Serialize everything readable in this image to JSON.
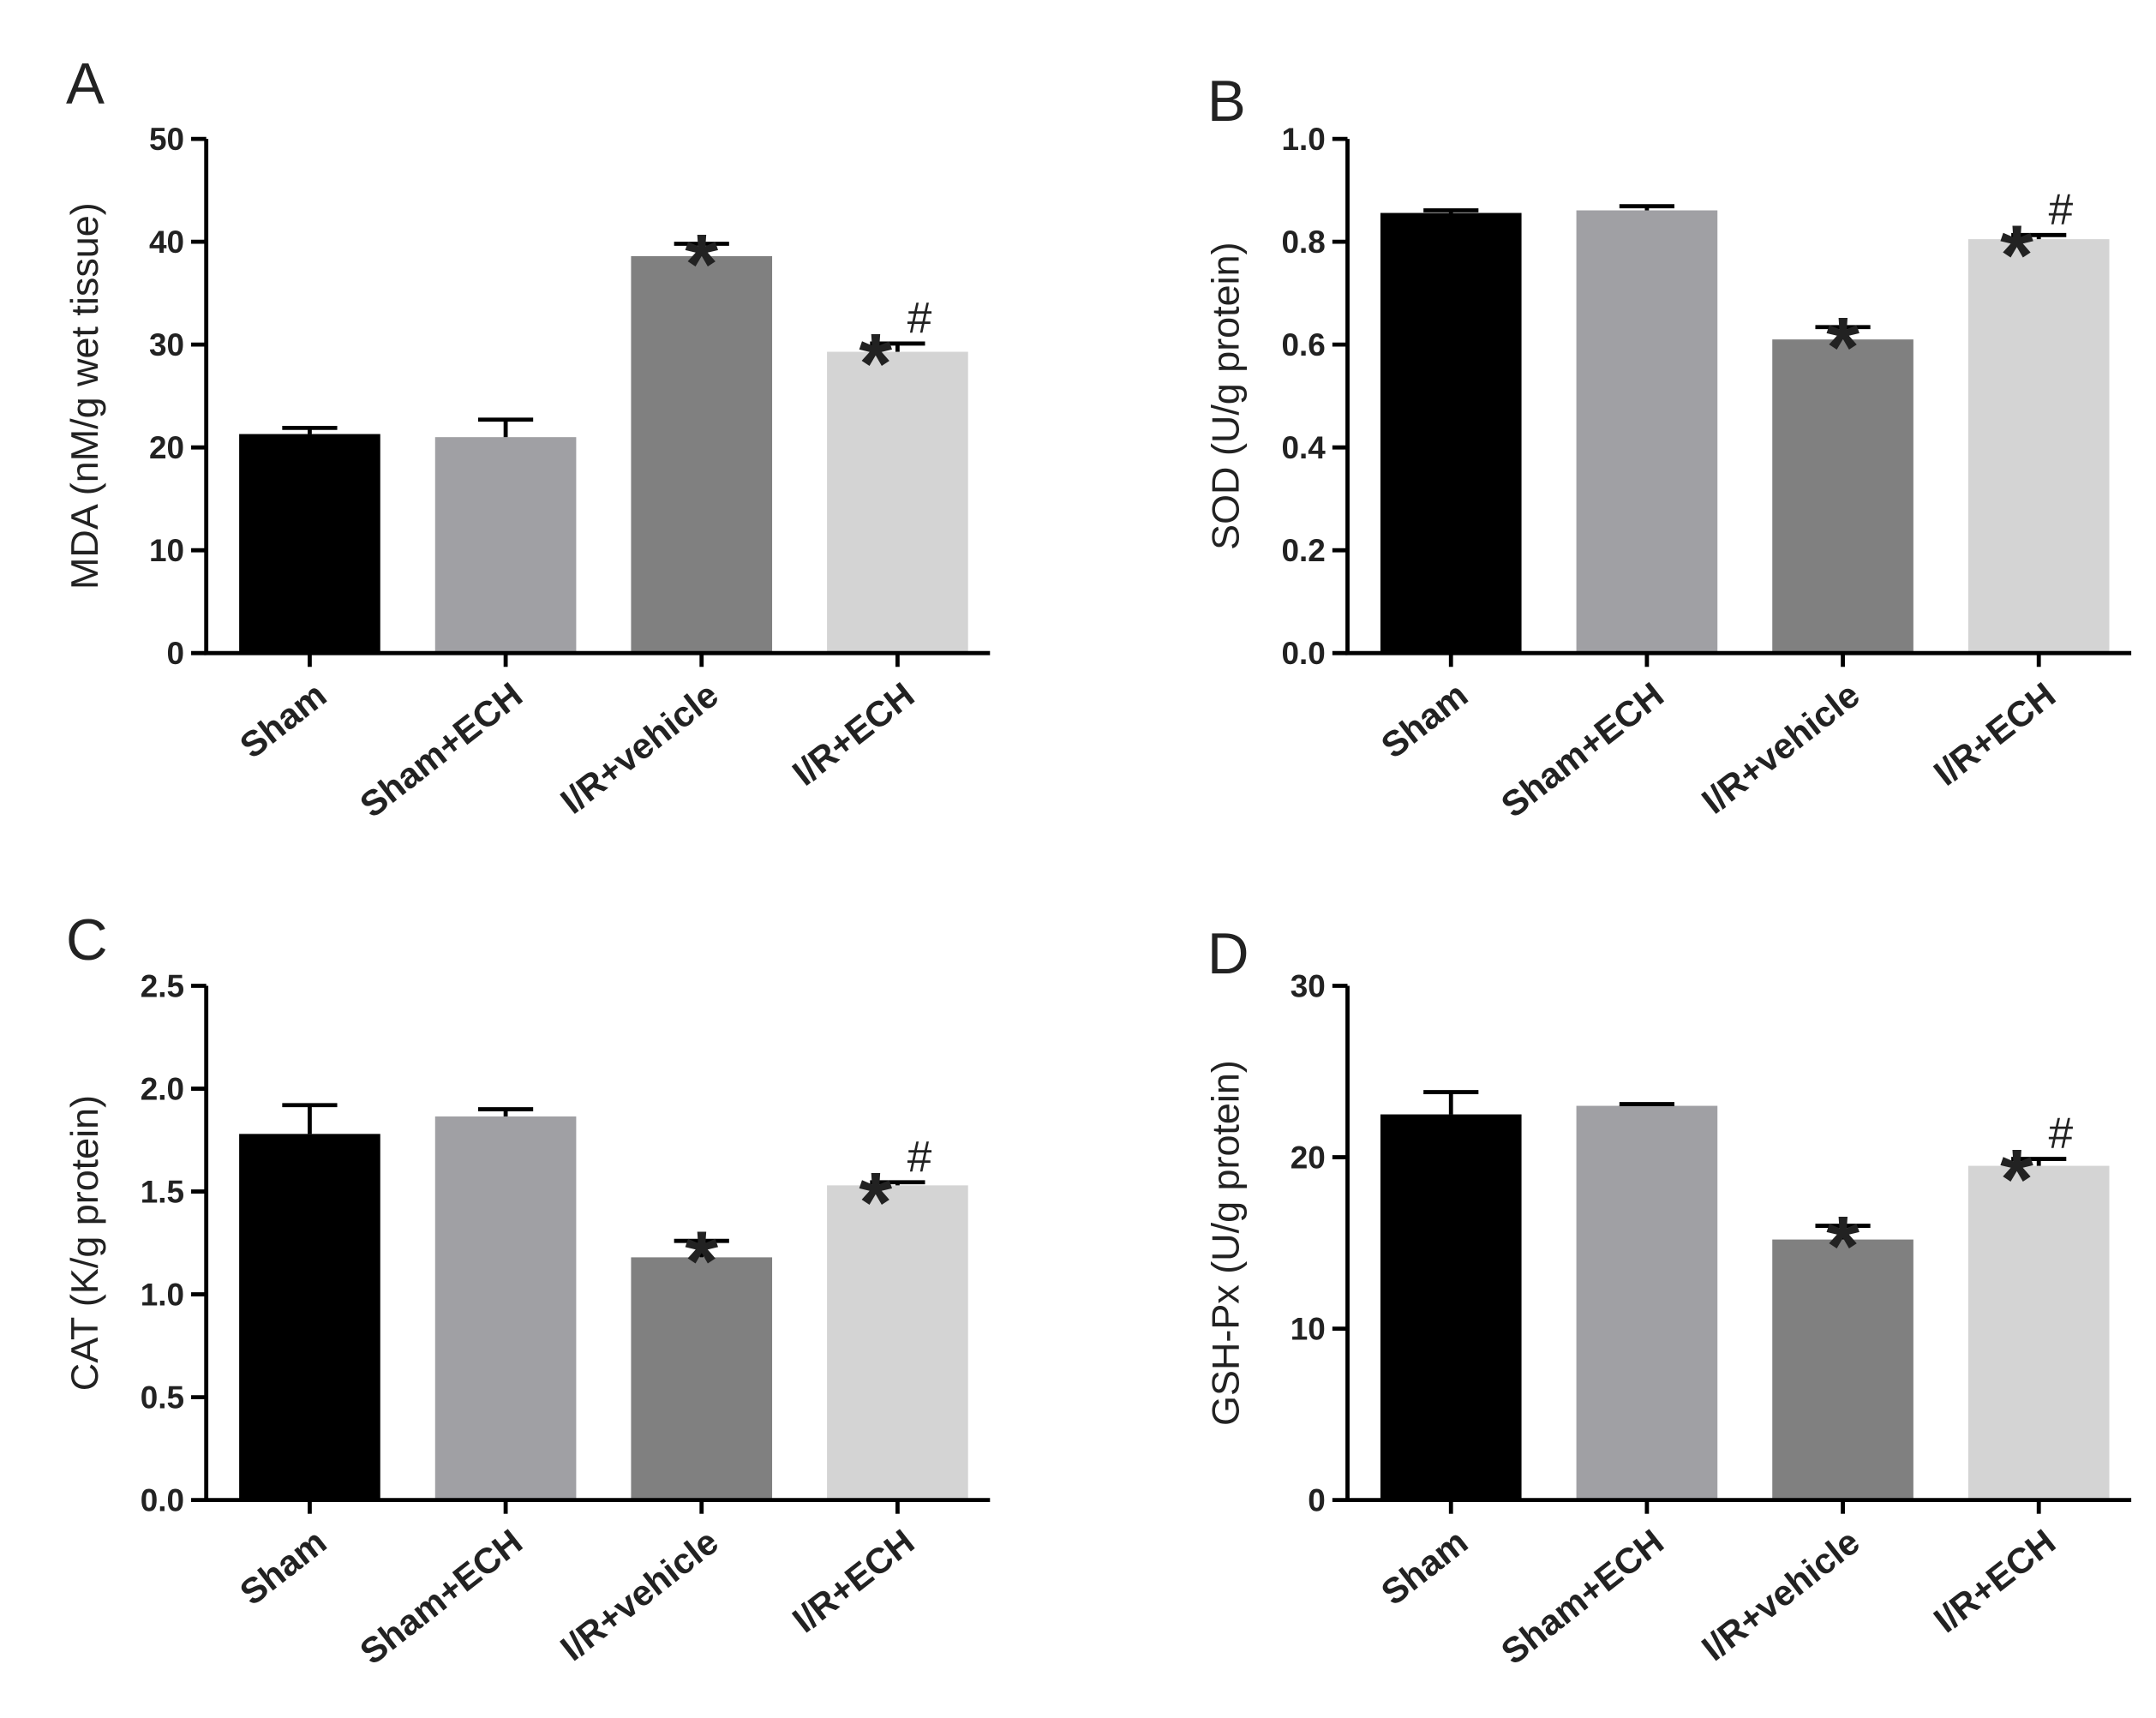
{
  "chart_data": [
    {
      "type": "bar",
      "panel_label": "A",
      "ylabel": "MDA (nM/g wet tissue)",
      "categories": [
        "Sham",
        "Sham+ECH",
        "I/R+vehicle",
        "I/R+ECH"
      ],
      "values": [
        21.3,
        21.0,
        38.6,
        29.3
      ],
      "errors": [
        0.6,
        1.7,
        1.2,
        0.8
      ],
      "colors": [
        "#000000",
        "#a0a0a4",
        "#808080",
        "#d4d4d4"
      ],
      "ylim": [
        0,
        50
      ],
      "yticks": [
        0,
        10,
        20,
        30,
        40,
        50
      ],
      "annotations": [
        {
          "at": "I/R+vehicle",
          "text": "*"
        },
        {
          "at": "I/R+ECH",
          "text": "*"
        },
        {
          "at": "I/R+ECH",
          "text": "#"
        }
      ]
    },
    {
      "type": "bar",
      "panel_label": "B",
      "ylabel": "SOD (U/g protein)",
      "categories": [
        "Sham",
        "Sham+ECH",
        "I/R+vehicle",
        "I/R+ECH"
      ],
      "values": [
        0.856,
        0.861,
        0.61,
        0.805
      ],
      "errors": [
        0.005,
        0.008,
        0.024,
        0.008
      ],
      "colors": [
        "#000000",
        "#a0a0a4",
        "#808080",
        "#d4d4d4"
      ],
      "ylim": [
        0,
        1
      ],
      "yticks": [
        {
          "value": 0,
          "label": "0.0"
        },
        0.2,
        0.4,
        0.6,
        0.8,
        {
          "value": 1,
          "label": "1.0"
        }
      ],
      "annotations": [
        {
          "at": "I/R+vehicle",
          "text": "*"
        },
        {
          "at": "I/R+ECH",
          "text": "*"
        },
        {
          "at": "I/R+ECH",
          "text": "#"
        }
      ]
    },
    {
      "type": "bar",
      "panel_label": "C",
      "ylabel": "CAT (K/g protein)",
      "categories": [
        "Sham",
        "Sham+ECH",
        "I/R+vehicle",
        "I/R+ECH"
      ],
      "values": [
        1.78,
        1.865,
        1.18,
        1.53
      ],
      "errors": [
        0.14,
        0.035,
        0.08,
        0.015
      ],
      "colors": [
        "#000000",
        "#a0a0a4",
        "#808080",
        "#d4d4d4"
      ],
      "ylim": [
        0,
        2.5
      ],
      "yticks": [
        {
          "value": 0,
          "label": "0.0"
        },
        0.5,
        {
          "value": 1,
          "label": "1.0"
        },
        1.5,
        {
          "value": 2,
          "label": "2.0"
        },
        2.5
      ],
      "annotations": [
        {
          "at": "I/R+vehicle",
          "text": "*"
        },
        {
          "at": "I/R+ECH",
          "text": "*"
        },
        {
          "at": "I/R+ECH",
          "text": "#"
        }
      ]
    },
    {
      "type": "bar",
      "panel_label": "D",
      "ylabel": "GSH-Px (U/g protein)",
      "categories": [
        "Sham",
        "Sham+ECH",
        "I/R+vehicle",
        "I/R+ECH"
      ],
      "values": [
        22.5,
        23.0,
        15.2,
        19.5
      ],
      "errors": [
        1.3,
        0.1,
        0.8,
        0.4
      ],
      "colors": [
        "#000000",
        "#a0a0a4",
        "#808080",
        "#d4d4d4"
      ],
      "ylim": [
        0,
        30
      ],
      "yticks": [
        0,
        10,
        20,
        30
      ],
      "annotations": [
        {
          "at": "I/R+vehicle",
          "text": "*"
        },
        {
          "at": "I/R+ECH",
          "text": "*"
        },
        {
          "at": "I/R+ECH",
          "text": "#"
        }
      ]
    }
  ]
}
